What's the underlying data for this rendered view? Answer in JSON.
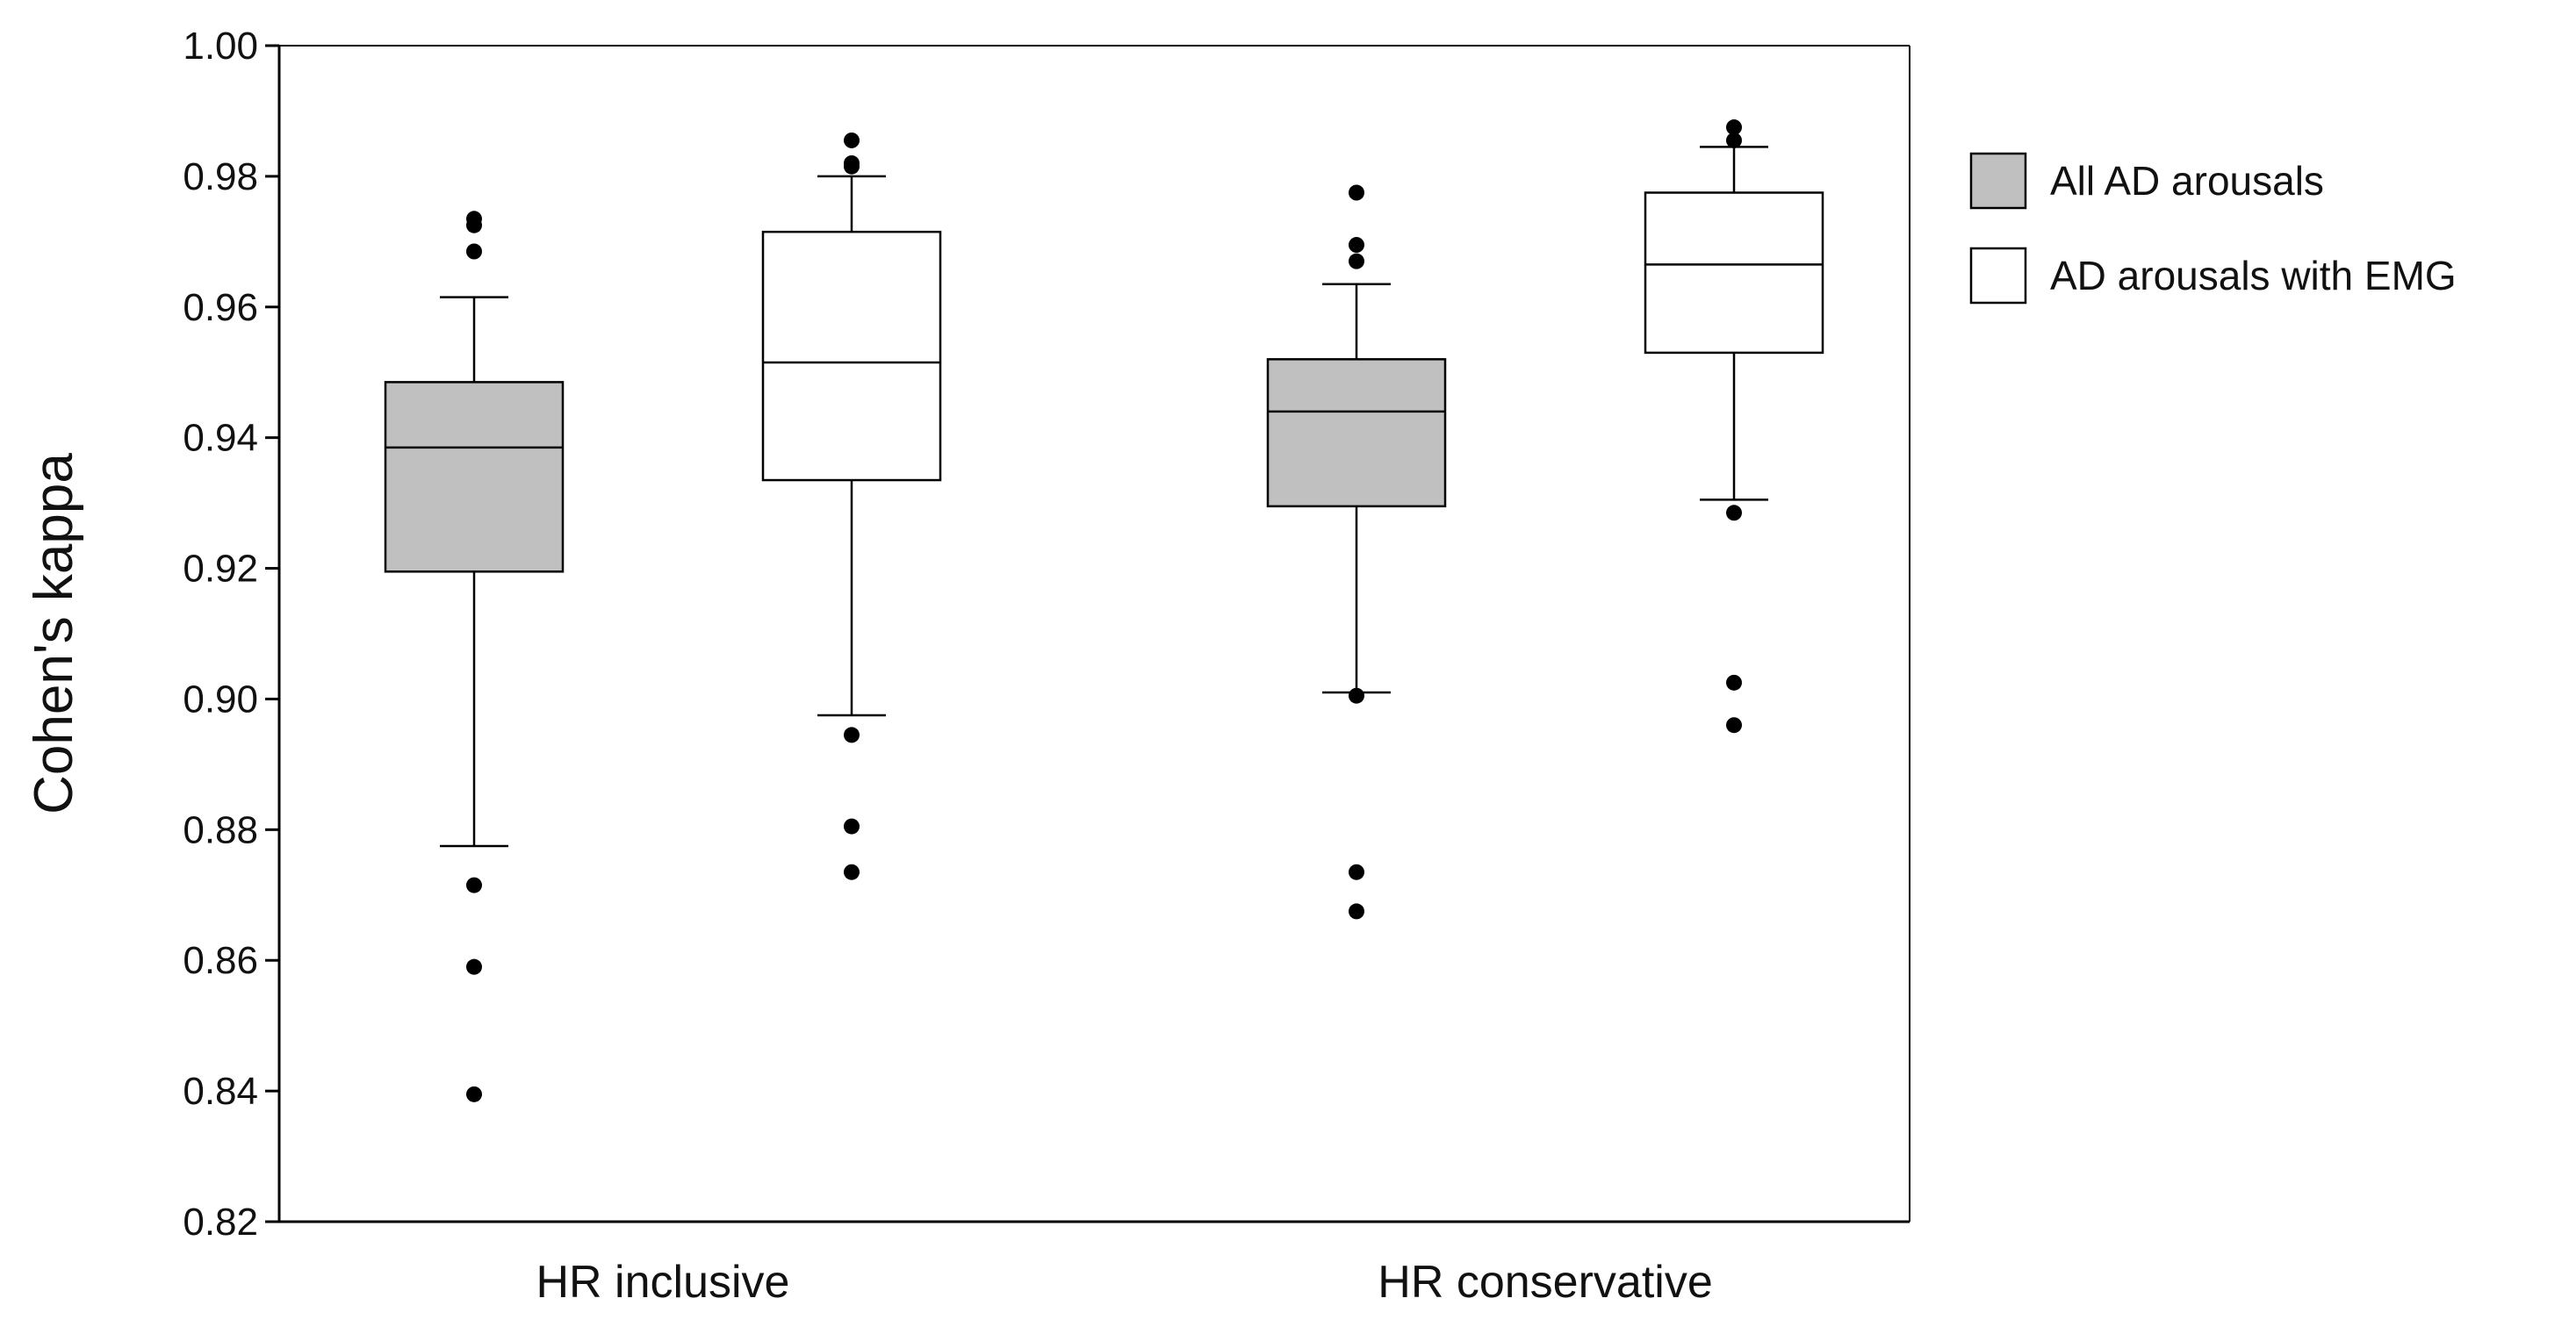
{
  "chart_data": {
    "type": "boxplot",
    "title": "",
    "xlabel": "",
    "ylabel": "Cohen's kappa",
    "ylim": [
      0.82,
      1.0
    ],
    "yticks": [
      "0.82",
      "0.84",
      "0.86",
      "0.88",
      "0.90",
      "0.92",
      "0.94",
      "0.96",
      "0.98",
      "1.00"
    ],
    "grid": false,
    "legend_position": "right",
    "categories": [
      "HR inclusive",
      "HR conservative"
    ],
    "series": [
      {
        "name": "All AD arousals",
        "color": "#c0c0c0",
        "boxes": [
          {
            "whisker_low": 0.8775,
            "q1": 0.9195,
            "median": 0.9385,
            "q3": 0.9485,
            "whisker_high": 0.9615,
            "outliers": [
              0.9735,
              0.9725,
              0.9685,
              0.8715,
              0.859,
              0.8395
            ]
          },
          {
            "whisker_low": 0.901,
            "q1": 0.9295,
            "median": 0.944,
            "q3": 0.952,
            "whisker_high": 0.9635,
            "outliers": [
              0.9775,
              0.9695,
              0.967,
              0.9005,
              0.8735,
              0.8675
            ]
          }
        ]
      },
      {
        "name": "AD arousals with EMG",
        "color": "#ffffff",
        "boxes": [
          {
            "whisker_low": 0.8975,
            "q1": 0.9335,
            "median": 0.9515,
            "q3": 0.9715,
            "whisker_high": 0.98,
            "outliers": [
              0.9855,
              0.982,
              0.9815,
              0.8945,
              0.8805,
              0.8735
            ]
          },
          {
            "whisker_low": 0.9305,
            "q1": 0.953,
            "median": 0.9665,
            "q3": 0.9775,
            "whisker_high": 0.9845,
            "outliers": [
              0.9875,
              0.9855,
              0.9285,
              0.9025,
              0.896
            ]
          }
        ]
      }
    ]
  }
}
